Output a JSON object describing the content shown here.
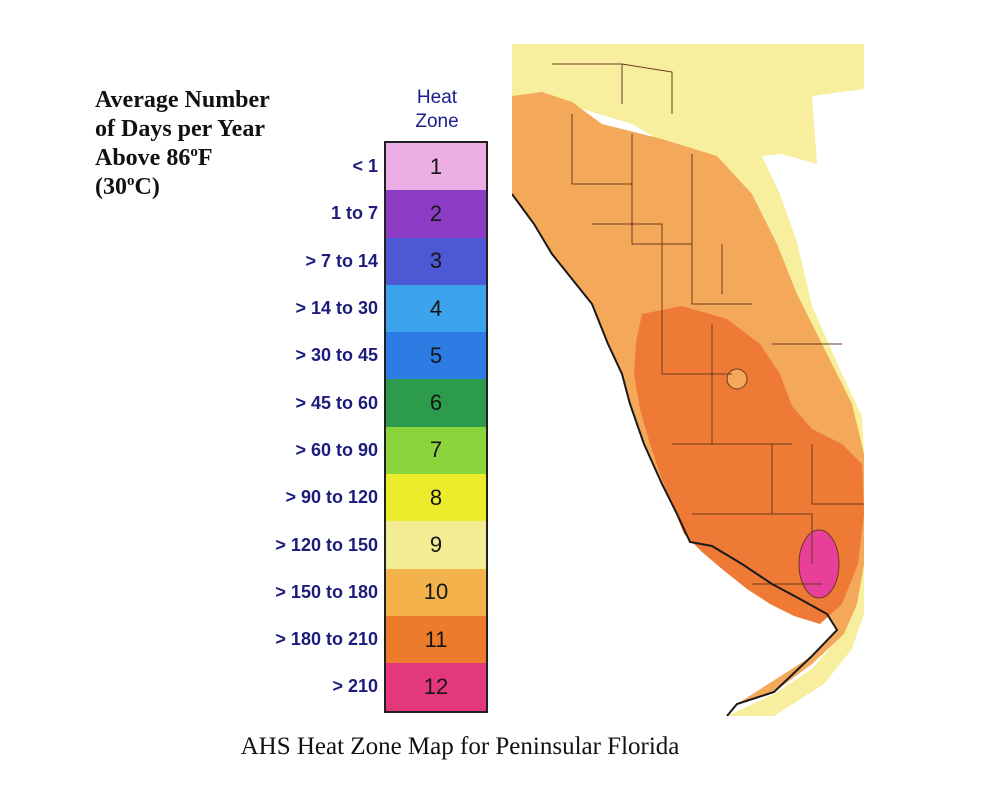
{
  "legend": {
    "title_line1": "Average Number",
    "title_line2": "of Days per Year",
    "title_line3_prefix": "Above 86",
    "title_line3_deg": "o",
    "title_line3_suffix": "F",
    "title_line4_prefix": "(30",
    "title_line4_deg": "o",
    "title_line4_suffix": "C)",
    "zone_header_line1": "Heat",
    "zone_header_line2": "Zone",
    "zones": [
      {
        "zone": "1",
        "range": "< 1",
        "color": "#ecaee4"
      },
      {
        "zone": "2",
        "range": "1 to 7",
        "color": "#8c3cc4"
      },
      {
        "zone": "3",
        "range": "> 7 to 14",
        "color": "#4c58d4"
      },
      {
        "zone": "4",
        "range": "> 14 to 30",
        "color": "#3ca4ec"
      },
      {
        "zone": "5",
        "range": "> 30 to 45",
        "color": "#2c7ce4"
      },
      {
        "zone": "6",
        "range": "> 45 to 60",
        "color": "#2c9c4c"
      },
      {
        "zone": "7",
        "range": "> 60 to 90",
        "color": "#8cd43c"
      },
      {
        "zone": "8",
        "range": "> 90 to 120",
        "color": "#ecec2c"
      },
      {
        "zone": "9",
        "range": "> 120 to 150",
        "color": "#f2ec94"
      },
      {
        "zone": "10",
        "range": "> 150 to 180",
        "color": "#f4b24c"
      },
      {
        "zone": "11",
        "range": "> 180 to 210",
        "color": "#ec7c2c"
      },
      {
        "zone": "12",
        "range": "> 210",
        "color": "#e4387c"
      }
    ]
  },
  "map": {
    "region": "Peninsular Florida",
    "zone_colors": {
      "zone9": "#f7ef9e",
      "zone10": "#f4a85a",
      "zone11": "#ee7a35",
      "zone12": "#e8409a",
      "outline": "#6b3a20"
    }
  },
  "caption": "AHS Heat Zone  Map  for Peninsular Florida"
}
